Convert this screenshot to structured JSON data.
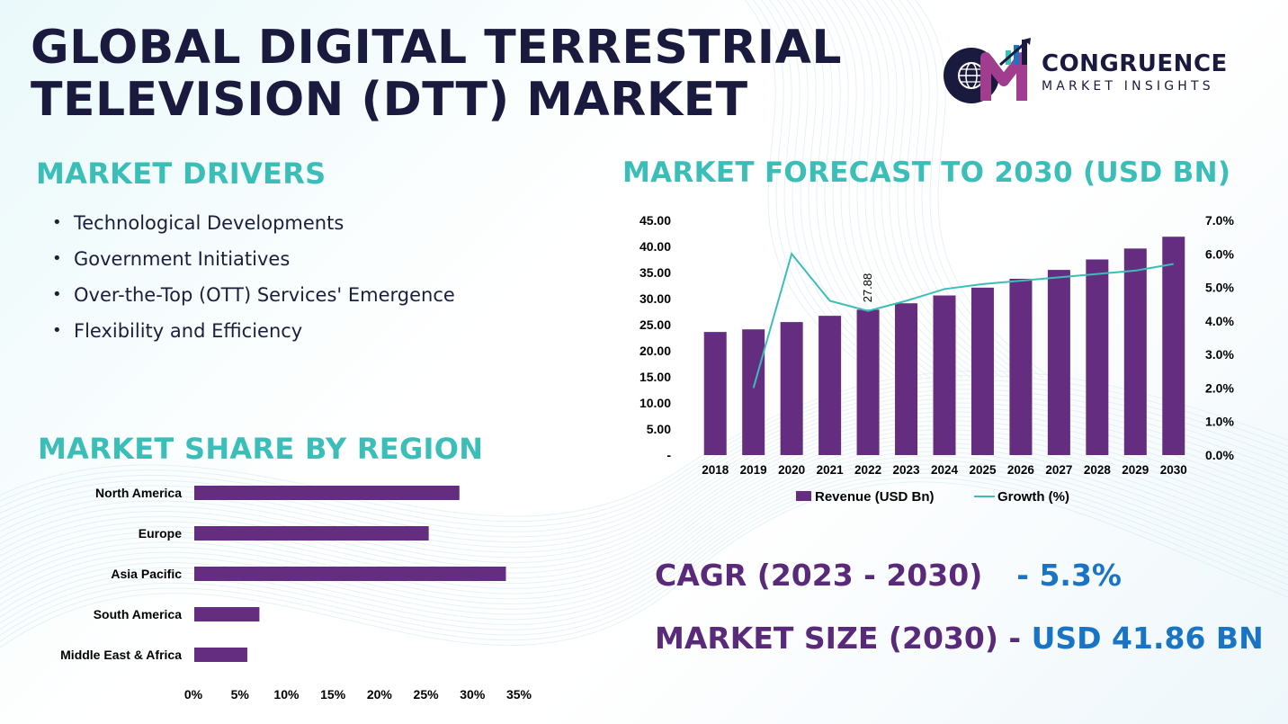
{
  "title": {
    "line1": "GLOBAL DIGITAL TERRESTRIAL",
    "line2": "TELEVISION (DTT) MARKET"
  },
  "logo": {
    "name": "CONGRUENCE",
    "sub": "MARKET INSIGHTS",
    "icon": "globe-chart-logo-icon"
  },
  "drivers": {
    "heading": "MARKET DRIVERS",
    "items": [
      "Technological Developments",
      "Government Initiatives",
      "Over-the-Top (OTT) Services' Emergence",
      "Flexibility and Efficiency"
    ]
  },
  "forecast": {
    "heading": "MARKET FORECAST TO 2030 (USD BN)"
  },
  "region": {
    "heading": "MARKET SHARE BY REGION"
  },
  "stats": {
    "cagr_label": "CAGR (2023 - 2030)",
    "cagr_value": "- 5.3%",
    "size_label": "MARKET SIZE (2030) -",
    "size_value": "USD 41.86 BN"
  },
  "colors": {
    "bar": "#642d7f",
    "line": "#3bbdb8",
    "heading": "#3bbdb8",
    "stat_label": "#5a2a7a",
    "stat_value": "#1a74c4"
  },
  "chart_data": [
    {
      "type": "bar",
      "subtype": "bar-line-combo",
      "categories": [
        "2018",
        "2019",
        "2020",
        "2021",
        "2022",
        "2023",
        "2024",
        "2025",
        "2026",
        "2027",
        "2028",
        "2029",
        "2030"
      ],
      "series": [
        {
          "name": "Revenue (USD Bn)",
          "axis": "left",
          "type": "bar",
          "values": [
            23.6,
            24.1,
            25.5,
            26.7,
            27.88,
            29.1,
            30.6,
            32.1,
            33.8,
            35.5,
            37.5,
            39.6,
            41.86
          ]
        },
        {
          "name": "Growth (%)",
          "axis": "right",
          "type": "line",
          "values": [
            null,
            2.0,
            6.0,
            4.6,
            4.3,
            4.6,
            4.95,
            5.1,
            5.2,
            5.3,
            5.4,
            5.5,
            5.7
          ]
        }
      ],
      "data_labels": [
        {
          "category": "2022",
          "text": "27.88"
        }
      ],
      "y_left": {
        "ylim": [
          0,
          45
        ],
        "ticks": [
          "-",
          "5.00",
          "10.00",
          "15.00",
          "20.00",
          "25.00",
          "30.00",
          "35.00",
          "40.00",
          "45.00"
        ]
      },
      "y_right": {
        "ylim": [
          0,
          7
        ],
        "ticks": [
          "0.0%",
          "1.0%",
          "2.0%",
          "3.0%",
          "4.0%",
          "5.0%",
          "6.0%",
          "7.0%"
        ]
      },
      "legend": {
        "placement": "bottom",
        "entries": [
          "Revenue (USD Bn)",
          "Growth (%)"
        ]
      },
      "grid": false
    },
    {
      "type": "bar",
      "orientation": "horizontal",
      "categories": [
        "North America",
        "Europe",
        "Asia Pacific",
        "South America",
        "Middle East & Africa"
      ],
      "values": [
        28.5,
        25.2,
        33.5,
        7.0,
        5.7
      ],
      "xlim": [
        0,
        35
      ],
      "x_ticks": [
        "0%",
        "5%",
        "10%",
        "15%",
        "20%",
        "25%",
        "30%",
        "35%"
      ],
      "grid": false
    }
  ]
}
